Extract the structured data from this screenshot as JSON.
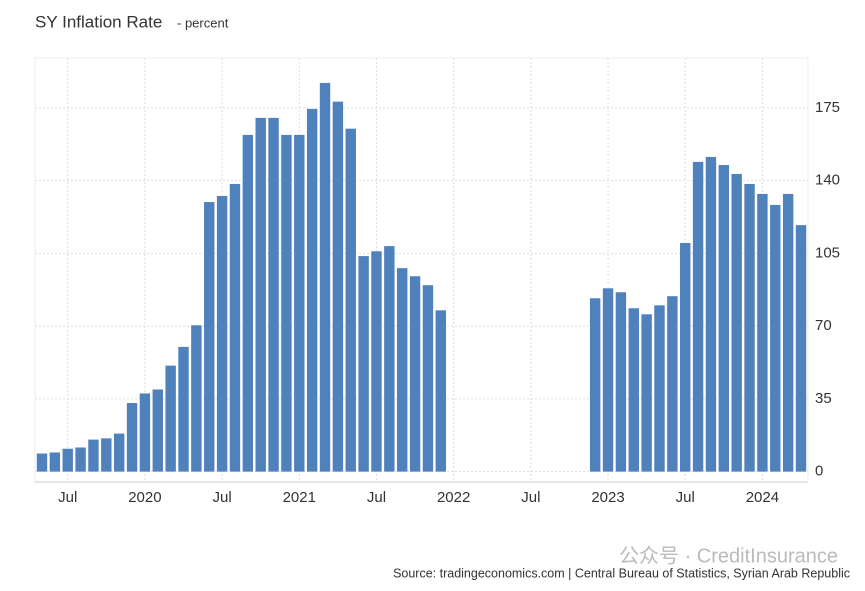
{
  "chart_data": {
    "type": "bar",
    "title": "SY Inflation Rate",
    "subtitle": "- percent",
    "source": "Source: tradingeconomics.com | Central Bureau of Statistics, Syrian Arab Republic",
    "watermark": "公众号 · CreditInsurance",
    "categories": [
      null,
      null,
      "Jul",
      null,
      null,
      null,
      null,
      null,
      "2020",
      null,
      null,
      null,
      null,
      null,
      "Jul",
      null,
      null,
      null,
      null,
      null,
      "2021",
      null,
      null,
      null,
      null,
      null,
      "Jul",
      null,
      null,
      null,
      null,
      null,
      "2022",
      null,
      null,
      null,
      null,
      null,
      "Jul",
      null,
      null,
      null,
      null,
      null,
      "2023",
      null,
      null,
      null,
      null,
      null,
      "Jul",
      null,
      null,
      null,
      null,
      null,
      "2024",
      null,
      null,
      null
    ],
    "values": [
      8.7,
      9.2,
      11,
      11.6,
      15.4,
      16,
      18.3,
      33,
      37.6,
      39.5,
      51,
      60,
      70.4,
      129.7,
      132.6,
      138.4,
      162,
      170.2,
      170.2,
      162,
      162,
      174.5,
      187,
      178,
      165,
      103.7,
      106,
      108.5,
      97.9,
      94,
      89.7,
      77.6,
      null,
      null,
      null,
      null,
      null,
      null,
      null,
      null,
      null,
      null,
      null,
      83.4,
      88.2,
      86.3,
      78.6,
      75.7,
      80,
      84.4,
      110,
      149,
      151.4,
      147.5,
      143.2,
      138.4,
      133.6,
      128.3,
      133.6,
      118.6
    ],
    "color": "#4f81bd",
    "ylim": [
      -5,
      199
    ],
    "yticks": [
      0,
      35,
      70,
      105,
      140,
      175
    ],
    "grid": true
  }
}
